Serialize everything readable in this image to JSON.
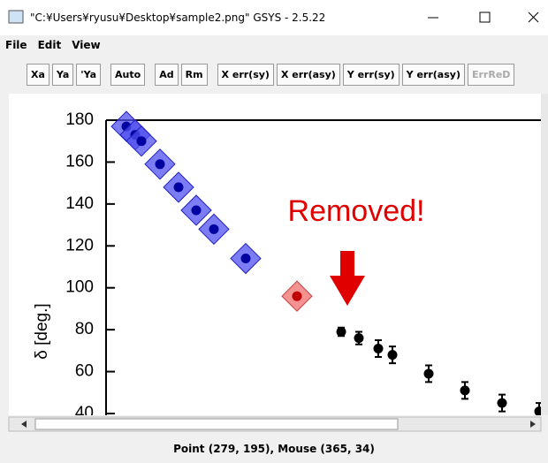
{
  "window": {
    "title": "\"C:¥Users¥ryusu¥Desktop¥sample2.png\" GSYS - 2.5.22"
  },
  "menu": [
    "File",
    "Edit",
    "View"
  ],
  "toolbar": [
    "Xa",
    "Ya",
    "'Ya",
    "Auto",
    "Ad",
    "Rm",
    "X err(sy)",
    "X err(asy)",
    "Y err(sy)",
    "Y err(asy)",
    "ErrReD"
  ],
  "chart_data": {
    "type": "scatter",
    "ylabel": "δ [deg.]",
    "annotation": "Removed!",
    "xlim": [
      0,
      100
    ],
    "ylim": [
      40,
      180
    ],
    "yticks": [
      40,
      60,
      80,
      100,
      120,
      140,
      160,
      180
    ],
    "series": [
      {
        "color": "#0000a0",
        "x": [
          4.6,
          6.6,
          8,
          12.2,
          16.4,
          20.4,
          24.4,
          31.6
        ],
        "values": [
          177,
          173,
          170,
          159,
          148,
          137,
          128,
          114
        ]
      },
      {
        "color": "#c00000",
        "x": [
          43.2
        ],
        "values": [
          96
        ]
      },
      {
        "color": "#000000",
        "x": [
          53.2,
          57.2,
          61.6,
          64.8,
          73,
          81.2,
          89.6,
          98
        ],
        "values": [
          79,
          76,
          71,
          68,
          59,
          51,
          45,
          41
        ],
        "errors": [
          2,
          3,
          4,
          4,
          4,
          4,
          4,
          4
        ]
      }
    ]
  },
  "status": "Point (279, 195), Mouse (365, 34)"
}
